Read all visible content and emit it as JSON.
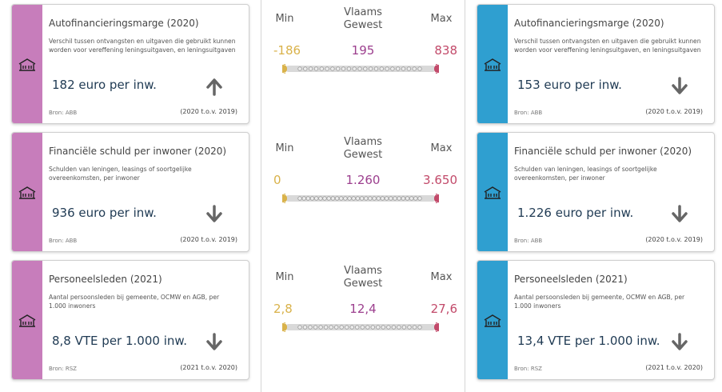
{
  "left_cards": [
    {
      "title": "Autofinancieringsmarge (2020)",
      "description": "Verschil tussen ontvangsten en uitgaven die gebruikt kunnen worden voor vereffening leningsuitgaven, en leningsuitgaven",
      "value": "182 euro per inw.",
      "source": "Bron: ABB",
      "period": "(2020 t.o.v. 2019)",
      "trend_icon": "arrow-up-icon"
    },
    {
      "title": "Financiële schuld per inwoner (2020)",
      "description": "Schulden van leningen, leasings of soortgelijke overeenkomsten, per inwoner",
      "value": "936 euro per inw.",
      "source": "Bron: ABB",
      "period": "(2020 t.o.v. 2019)",
      "trend_icon": "arrow-down-icon"
    },
    {
      "title": "Personeelsleden (2021)",
      "description": "Aantal persoonsleden bij gemeente, OCMW en AGB, per 1.000 inwoners",
      "value": "8,8 VTE per 1.000 inw.",
      "source": "Bron: RSZ",
      "period": "(2021 t.o.v. 2020)",
      "trend_icon": "arrow-down-icon"
    }
  ],
  "right_cards": [
    {
      "title": "Autofinancieringsmarge (2020)",
      "description": "Verschil tussen ontvangsten en uitgaven die gebruikt kunnen worden voor vereffening leningsuitgaven, en leningsuitgaven",
      "value": "153 euro per inw.",
      "source": "Bron: ABB",
      "period": "(2020 t.o.v. 2019)",
      "trend_icon": "arrow-down-icon"
    },
    {
      "title": "Financiële schuld per inwoner (2020)",
      "description": "Schulden van leningen, leasings of soortgelijke overeenkomsten, per inwoner",
      "value": "1.226 euro per inw.",
      "source": "Bron: ABB",
      "period": "(2020 t.o.v. 2019)",
      "trend_icon": "arrow-down-icon"
    },
    {
      "title": "Personeelsleden (2021)",
      "description": "Aantal persoonsleden bij gemeente, OCMW en AGB, per 1.000 inwoners",
      "value": "13,4 VTE per 1.000 inw.",
      "source": "Bron: RSZ",
      "period": "(2021 t.o.v. 2020)",
      "trend_icon": "arrow-down-icon"
    }
  ],
  "comparisons": [
    {
      "min_label": "Min",
      "gewest_label": "Vlaams Gewest",
      "max_label": "Max",
      "min": "-186",
      "gewest": "195",
      "max": "838",
      "dot_count": 23
    },
    {
      "min_label": "Min",
      "gewest_label": "Vlaams Gewest",
      "max_label": "Max",
      "min": "0",
      "gewest": "1.260",
      "max": "3.650",
      "dot_count": 30
    },
    {
      "min_label": "Min",
      "gewest_label": "Vlaams Gewest",
      "max_label": "Max",
      "min": "2,8",
      "gewest": "12,4",
      "max": "27,6",
      "dot_count": 24
    }
  ],
  "colors": {
    "left_accent": "#c77dbb",
    "right_accent": "#2f9fd0",
    "min_color": "#d9b24a",
    "gewest_color": "#9c3f8e",
    "max_color": "#c24a6a",
    "track": "#d9d9d9"
  },
  "icons": {
    "stripe": "municipality-building-icon"
  }
}
